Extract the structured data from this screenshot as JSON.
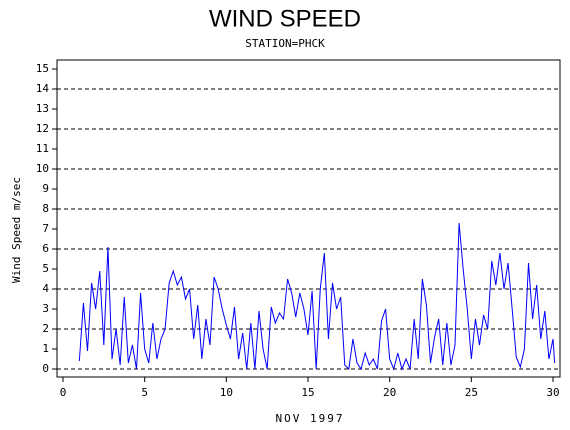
{
  "chart_data": {
    "type": "line",
    "title": "WIND SPEED",
    "subtitle": "STATION=PHCK",
    "x_label": "NOV 1997",
    "y_label": "Wind Speed m/sec",
    "xlim": [
      0,
      30
    ],
    "xticks": [
      0,
      5,
      10,
      15,
      20,
      25,
      30
    ],
    "ylim": [
      0,
      15
    ],
    "yticks": [
      0,
      1,
      2,
      3,
      4,
      5,
      6,
      7,
      8,
      9,
      10,
      11,
      12,
      13,
      14,
      15
    ],
    "grid": true,
    "series": [
      {
        "color": "#0000ff",
        "x": [
          1.0,
          1.25,
          1.5,
          1.75,
          2.0,
          2.25,
          2.5,
          2.75,
          3.0,
          3.25,
          3.5,
          3.75,
          4.0,
          4.25,
          4.5,
          4.75,
          5.0,
          5.25,
          5.5,
          5.75,
          6.0,
          6.25,
          6.5,
          6.75,
          7.0,
          7.25,
          7.5,
          7.75,
          8.0,
          8.25,
          8.5,
          8.75,
          9.0,
          9.25,
          9.5,
          9.75,
          10.0,
          10.25,
          10.5,
          10.75,
          11.0,
          11.25,
          11.5,
          11.75,
          12.0,
          12.25,
          12.5,
          12.75,
          13.0,
          13.25,
          13.5,
          13.75,
          14.0,
          14.25,
          14.5,
          14.75,
          15.0,
          15.25,
          15.5,
          15.75,
          16.0,
          16.25,
          16.5,
          16.75,
          17.0,
          17.25,
          17.5,
          17.75,
          18.0,
          18.25,
          18.5,
          18.75,
          19.0,
          19.25,
          19.5,
          19.75,
          20.0,
          20.25,
          20.5,
          20.75,
          21.0,
          21.25,
          21.5,
          21.75,
          22.0,
          22.25,
          22.5,
          22.75,
          23.0,
          23.25,
          23.5,
          23.75,
          24.0,
          24.25,
          24.5,
          24.75,
          25.0,
          25.25,
          25.5,
          25.75,
          26.0,
          26.25,
          26.5,
          26.75,
          27.0,
          27.25,
          27.5,
          27.75,
          28.0,
          28.25,
          28.5,
          28.75,
          29.0,
          29.25,
          29.5,
          29.75,
          30.0,
          30.1
        ],
        "values": [
          0.4,
          3.3,
          0.9,
          4.3,
          3.0,
          4.9,
          1.2,
          6.1,
          0.5,
          2.0,
          0.2,
          3.6,
          0.3,
          1.2,
          0,
          3.8,
          1.0,
          0.3,
          2.3,
          0.5,
          1.5,
          2.0,
          4.3,
          4.9,
          4.2,
          4.6,
          3.5,
          4.0,
          1.5,
          3.2,
          0.5,
          2.5,
          1.2,
          4.6,
          4.0,
          3.0,
          2.2,
          1.5,
          3.1,
          0.5,
          1.8,
          0,
          2.3,
          0,
          2.9,
          1.0,
          0,
          3.1,
          2.3,
          2.8,
          2.5,
          4.5,
          3.8,
          2.6,
          3.8,
          3.0,
          1.7,
          3.9,
          0,
          4.0,
          5.8,
          1.5,
          4.3,
          3.0,
          3.6,
          0.2,
          0,
          1.5,
          0.3,
          0,
          0.8,
          0.2,
          0.5,
          0,
          2.4,
          3.0,
          0.5,
          0,
          0.8,
          0,
          0.5,
          0,
          2.5,
          0.5,
          4.5,
          3.2,
          0.3,
          1.6,
          2.5,
          0.2,
          2.3,
          0.2,
          1.2,
          7.3,
          5.0,
          3.0,
          0.5,
          2.5,
          1.2,
          2.7,
          2.0,
          5.4,
          4.2,
          5.8,
          4.0,
          5.3,
          3.0,
          0.6,
          0.1,
          1.0,
          5.3,
          2.5,
          4.2,
          1.5,
          2.9,
          0.5,
          1.5,
          0.3
        ]
      }
    ]
  }
}
